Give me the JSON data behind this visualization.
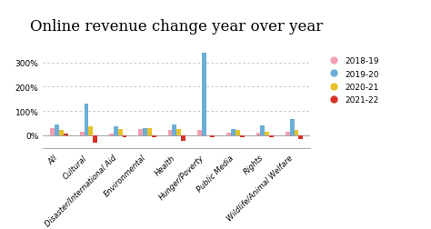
{
  "title": "Online revenue change year over year",
  "categories": [
    "All",
    "Cultural",
    "Disaster/International Aid",
    "Environmental",
    "Health",
    "Hunger/Poverty",
    "Public Media",
    "Rights",
    "Wildlife/Animal Welfare"
  ],
  "series": {
    "2018-19": [
      30,
      15,
      5,
      25,
      20,
      20,
      10,
      10,
      15
    ],
    "2019-20": [
      45,
      130,
      35,
      30,
      45,
      340,
      25,
      40,
      65
    ],
    "2020-21": [
      20,
      35,
      25,
      30,
      25,
      0,
      20,
      15,
      20
    ],
    "2021-22": [
      5,
      -30,
      -10,
      -10,
      -25,
      -10,
      -10,
      -10,
      -15
    ]
  },
  "colors": {
    "2018-19": "#f4a0b0",
    "2019-20": "#6baed6",
    "2020-21": "#e6c229",
    "2021-22": "#d73027"
  },
  "ylim": [
    -55,
    390
  ],
  "yticks": [
    0,
    100,
    200,
    300
  ],
  "background": "#ffffff",
  "title_fontsize": 12,
  "legend_dot_size": 7,
  "bar_width": 0.15
}
